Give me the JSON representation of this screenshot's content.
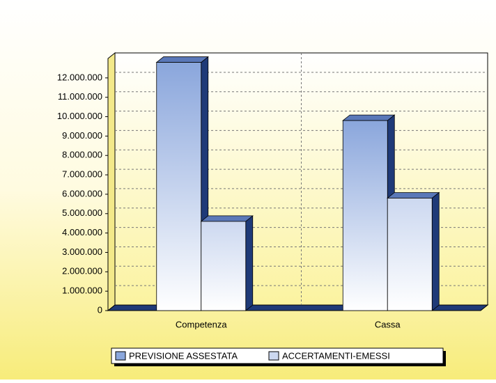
{
  "chart_data": {
    "type": "bar3d",
    "categories": [
      "Competenza",
      "Cassa"
    ],
    "series": [
      {
        "name": "PREVISIONE ASSESTATA",
        "color": "#8aa6dc",
        "values": [
          12800000,
          9800000
        ]
      },
      {
        "name": "ACCERTAMENTI-EMESSI",
        "color": "#ccd8f0",
        "values": [
          4600000,
          5800000
        ]
      }
    ],
    "ylim": [
      0,
      13000000
    ],
    "yticks": [
      {
        "value": 0,
        "label": "0"
      },
      {
        "value": 1000000,
        "label": "1.000.000"
      },
      {
        "value": 2000000,
        "label": "2.000.000"
      },
      {
        "value": 3000000,
        "label": "3.000.000"
      },
      {
        "value": 4000000,
        "label": "4.000.000"
      },
      {
        "value": 5000000,
        "label": "5.000.000"
      },
      {
        "value": 6000000,
        "label": "6.000.000"
      },
      {
        "value": 7000000,
        "label": "7.000.000"
      },
      {
        "value": 8000000,
        "label": "8.000.000"
      },
      {
        "value": 9000000,
        "label": "9.000.000"
      },
      {
        "value": 10000000,
        "label": "10.000.000"
      },
      {
        "value": 11000000,
        "label": "11.000.000"
      },
      {
        "value": 12000000,
        "label": "12.000.000"
      }
    ],
    "grid": true,
    "legend": "bottom"
  }
}
